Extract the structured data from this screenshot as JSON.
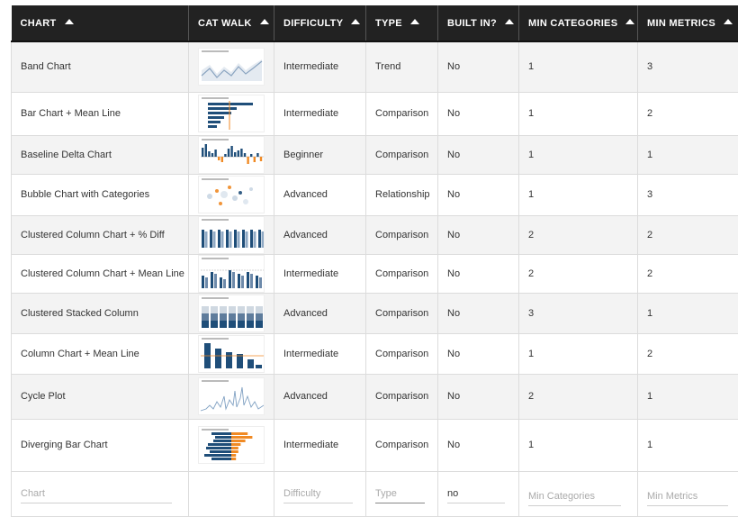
{
  "columns": [
    {
      "label": "CHART",
      "name": "chart"
    },
    {
      "label": "CAT WALK",
      "name": "cat-walk"
    },
    {
      "label": "DIFFICULTY",
      "name": "difficulty"
    },
    {
      "label": "TYPE",
      "name": "type"
    },
    {
      "label": "BUILT IN?",
      "name": "built-in"
    },
    {
      "label": "MIN CATEGORIES",
      "name": "min-categories"
    },
    {
      "label": "MIN METRICS",
      "name": "min-metrics"
    }
  ],
  "rows": [
    {
      "chart": "Band Chart",
      "thumbnail": "band-chart-thumbnail",
      "difficulty": "Intermediate",
      "type": "Trend",
      "built_in": "No",
      "min_categories": "1",
      "min_metrics": "3"
    },
    {
      "chart": "Bar Chart + Mean Line",
      "thumbnail": "bar-chart-mean-line-thumbnail",
      "difficulty": "Intermediate",
      "type": "Comparison",
      "built_in": "No",
      "min_categories": "1",
      "min_metrics": "2"
    },
    {
      "chart": "Baseline Delta Chart",
      "thumbnail": "baseline-delta-chart-thumbnail",
      "difficulty": "Beginner",
      "type": "Comparison",
      "built_in": "No",
      "min_categories": "1",
      "min_metrics": "1"
    },
    {
      "chart": "Bubble Chart with Categories",
      "thumbnail": "bubble-chart-thumbnail",
      "difficulty": "Advanced",
      "type": "Relationship",
      "built_in": "No",
      "min_categories": "1",
      "min_metrics": "3"
    },
    {
      "chart": "Clustered Column Chart + % Diff",
      "thumbnail": "clustered-column-diff-thumbnail",
      "difficulty": "Advanced",
      "type": "Comparison",
      "built_in": "No",
      "min_categories": "2",
      "min_metrics": "2"
    },
    {
      "chart": "Clustered Column Chart + Mean Line",
      "thumbnail": "clustered-column-mean-thumbnail",
      "difficulty": "Intermediate",
      "type": "Comparison",
      "built_in": "No",
      "min_categories": "2",
      "min_metrics": "2"
    },
    {
      "chart": "Clustered Stacked Column",
      "thumbnail": "clustered-stacked-column-thumbnail",
      "difficulty": "Advanced",
      "type": "Comparison",
      "built_in": "No",
      "min_categories": "3",
      "min_metrics": "1"
    },
    {
      "chart": "Column Chart + Mean Line",
      "thumbnail": "column-chart-mean-line-thumbnail",
      "difficulty": "Intermediate",
      "type": "Comparison",
      "built_in": "No",
      "min_categories": "1",
      "min_metrics": "2"
    },
    {
      "chart": "Cycle Plot",
      "thumbnail": "cycle-plot-thumbnail",
      "difficulty": "Advanced",
      "type": "Comparison",
      "built_in": "No",
      "min_categories": "2",
      "min_metrics": "1"
    },
    {
      "chart": "Diverging Bar Chart",
      "thumbnail": "diverging-bar-chart-thumbnail",
      "difficulty": "Intermediate",
      "type": "Comparison",
      "built_in": "No",
      "min_categories": "1",
      "min_metrics": "1"
    }
  ],
  "filters": {
    "chart_placeholder": "Chart",
    "difficulty_placeholder": "Difficulty",
    "type_placeholder": "Type",
    "built_in_value": "no",
    "min_categories_placeholder": "Min Categories",
    "min_metrics_placeholder": "Min Metrics"
  },
  "icons": {
    "sort": "sort-ascending-icon"
  },
  "colors": {
    "header_bg": "#222222",
    "navy": "#1f4e79",
    "orange": "#f08a24",
    "row_alt": "#f3f3f3"
  }
}
